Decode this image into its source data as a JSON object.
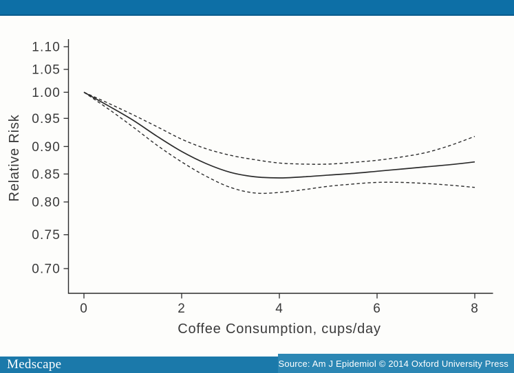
{
  "header": {
    "bar_color": "#0d6fa6"
  },
  "footer": {
    "logo_text": "Medscape",
    "bar_color": "#1b79aa",
    "source_block_color": "#2c87b4",
    "source_text": "Source: Am J Epidemiol © 2014 Oxford University Press"
  },
  "chart_data": {
    "type": "line",
    "title": "",
    "xlabel": "Coffee Consumption, cups/day",
    "ylabel": "Relative Risk",
    "xlim": [
      0,
      8
    ],
    "ylim": [
      0.7,
      1.1
    ],
    "x_ticks": [
      0,
      2,
      4,
      6,
      8
    ],
    "y_ticks": [
      "1.10",
      "1.05",
      "1.00",
      "0.95",
      "0.90",
      "0.85",
      "0.80",
      "0.75",
      "0.70"
    ],
    "grid": false,
    "legend": "none",
    "line_color": "#2b2b2b",
    "text_color": "#3a3a3a",
    "x": [
      0,
      0.5,
      1,
      1.5,
      2,
      2.5,
      3,
      3.5,
      4,
      4.5,
      5,
      5.5,
      6,
      6.5,
      7,
      7.5,
      8
    ],
    "series": [
      {
        "name": "relative_risk",
        "style": "solid",
        "values": [
          1.0,
          0.974,
          0.947,
          0.918,
          0.891,
          0.869,
          0.853,
          0.845,
          0.843,
          0.845,
          0.848,
          0.851,
          0.855,
          0.859,
          0.863,
          0.867,
          0.872
        ]
      },
      {
        "name": "upper_95ci",
        "style": "dashed",
        "values": [
          1.0,
          0.979,
          0.957,
          0.935,
          0.913,
          0.896,
          0.884,
          0.876,
          0.87,
          0.868,
          0.868,
          0.871,
          0.875,
          0.881,
          0.889,
          0.902,
          0.918
        ]
      },
      {
        "name": "lower_95ci",
        "style": "dashed",
        "values": [
          1.0,
          0.968,
          0.935,
          0.902,
          0.872,
          0.846,
          0.826,
          0.816,
          0.817,
          0.822,
          0.828,
          0.832,
          0.835,
          0.835,
          0.833,
          0.83,
          0.826
        ]
      }
    ]
  }
}
